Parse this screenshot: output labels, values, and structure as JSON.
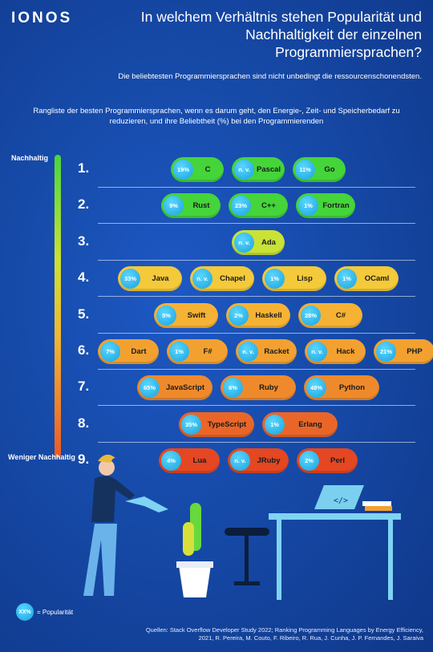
{
  "logo": "IONOS",
  "title": "In welchem Verhältnis stehen Popularität und Nachhaltigkeit der einzelnen Programmiersprachen?",
  "subtitle": "Die beliebtesten Programmiersprachen sind nicht unbedingt die ressourcenschonendsten.",
  "description": "Rangliste der besten Programmiersprachen, wenn es darum geht, den Energie-, Zeit- und Speicherbedarf zu reduzieren, und ihre Beliebtheit (%) bei den Programmierenden",
  "scale": {
    "top_label": "Nachhaltig",
    "bottom_label": "Weniger Nachhaltig"
  },
  "legend": {
    "badge": "XX%",
    "text": "= Popularität"
  },
  "source": "Quellen: Stack Overflow Developer Study 2022; Ranking Programming Languages by Energy Efficiency, 2021, R. Pereira, M. Couto, F. Ribeiro, R. Rua, J. Cunha, J. P. Fernandes, J. Saraiva",
  "colors": {
    "rank1": "#45d43a",
    "rank2": "#45d43a",
    "rank3": "#c9e236",
    "rank4": "#f4c93a",
    "rank5": "#f6b234",
    "rank6": "#f2a131",
    "rank7": "#ee8a2c",
    "rank8": "#ea6628",
    "rank9": "#e44722",
    "badge": "#1aa2de"
  },
  "chart_data": {
    "type": "table",
    "ranks": [
      {
        "rank": "1.",
        "languages": [
          {
            "name": "C",
            "popularity": "19%"
          },
          {
            "name": "Pascal",
            "popularity": "n. v."
          },
          {
            "name": "Go",
            "popularity": "11%"
          }
        ]
      },
      {
        "rank": "2.",
        "languages": [
          {
            "name": "Rust",
            "popularity": "9%"
          },
          {
            "name": "C++",
            "popularity": "23%"
          },
          {
            "name": "Fortran",
            "popularity": "1%"
          }
        ]
      },
      {
        "rank": "3.",
        "languages": [
          {
            "name": "Ada",
            "popularity": "n. v."
          }
        ]
      },
      {
        "rank": "4.",
        "languages": [
          {
            "name": "Java",
            "popularity": "33%"
          },
          {
            "name": "Chapel",
            "popularity": "n. v."
          },
          {
            "name": "Lisp",
            "popularity": "1%"
          },
          {
            "name": "OCaml",
            "popularity": "1%"
          }
        ]
      },
      {
        "rank": "5.",
        "languages": [
          {
            "name": "Swift",
            "popularity": "5%"
          },
          {
            "name": "Haskell",
            "popularity": "2%"
          },
          {
            "name": "C#",
            "popularity": "28%"
          }
        ]
      },
      {
        "rank": "6.",
        "languages": [
          {
            "name": "Dart",
            "popularity": "7%"
          },
          {
            "name": "F#",
            "popularity": "1%"
          },
          {
            "name": "Racket",
            "popularity": "n. v."
          },
          {
            "name": "Hack",
            "popularity": "n. v."
          },
          {
            "name": "PHP",
            "popularity": "21%"
          }
        ]
      },
      {
        "rank": "7.",
        "languages": [
          {
            "name": "JavaScript",
            "popularity": "65%"
          },
          {
            "name": "Ruby",
            "popularity": "6%"
          },
          {
            "name": "Python",
            "popularity": "48%"
          }
        ]
      },
      {
        "rank": "8.",
        "languages": [
          {
            "name": "TypeScript",
            "popularity": "35%"
          },
          {
            "name": "Erlang",
            "popularity": "1%"
          }
        ]
      },
      {
        "rank": "9.",
        "languages": [
          {
            "name": "Lua",
            "popularity": "4%"
          },
          {
            "name": "JRuby",
            "popularity": "n. v."
          },
          {
            "name": "Perl",
            "popularity": "2%"
          }
        ]
      }
    ]
  }
}
